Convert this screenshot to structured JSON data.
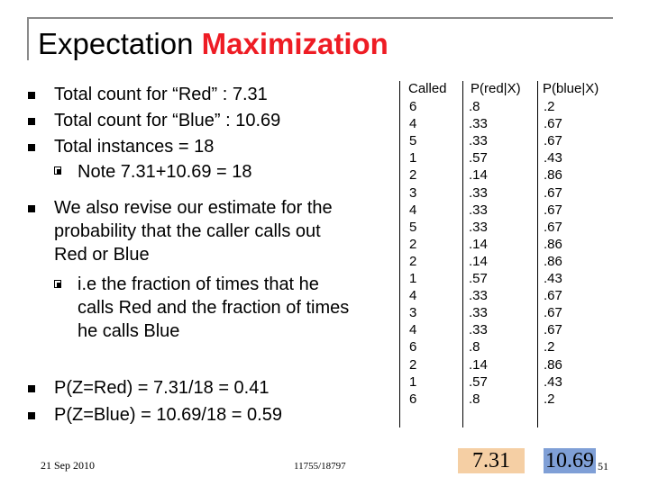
{
  "title": {
    "main": "Expectation",
    "accent": "Maximization"
  },
  "bullets": {
    "b1": "Total count for “Red” : 7.31",
    "b2": "Total count for “Blue” : 10.69",
    "b3": "Total instances = 18",
    "b3_sub": "Note 7.31+10.69 = 18",
    "b4_lines": [
      "We also revise our estimate for the",
      "probability that the caller calls out",
      "Red or Blue"
    ],
    "b4_sub_lines": [
      "i.e the fraction of times that he",
      "calls Red and the fraction of times",
      "he calls Blue"
    ],
    "b5": "P(Z=Red) = 7.31/18 = 0.41",
    "b6": "P(Z=Blue) = 10.69/18 = 0.59"
  },
  "table": {
    "headers": [
      "Called",
      "P(red|X)",
      "P(blue|X)"
    ],
    "rows": [
      [
        "6",
        ".8",
        ".2"
      ],
      [
        "4",
        ".33",
        ".67"
      ],
      [
        "5",
        ".33",
        ".67"
      ],
      [
        "1",
        ".57",
        ".43"
      ],
      [
        "2",
        ".14",
        ".86"
      ],
      [
        "3",
        ".33",
        ".67"
      ],
      [
        "4",
        ".33",
        ".67"
      ],
      [
        "5",
        ".33",
        ".67"
      ],
      [
        "2",
        ".14",
        ".86"
      ],
      [
        "2",
        ".14",
        ".86"
      ],
      [
        "1",
        ".57",
        ".43"
      ],
      [
        "4",
        ".33",
        ".67"
      ],
      [
        "3",
        ".33",
        ".67"
      ],
      [
        "4",
        ".33",
        ".67"
      ],
      [
        "6",
        ".8",
        ".2"
      ],
      [
        "2",
        ".14",
        ".86"
      ],
      [
        "1",
        ".57",
        ".43"
      ],
      [
        "6",
        ".8",
        ".2"
      ]
    ]
  },
  "sums": {
    "red": "7.31",
    "blue": "10.69"
  },
  "footer": {
    "date": "21 Sep 2010",
    "course": "11755/18797",
    "page": "51"
  },
  "colors": {
    "accent": "#ee1c24",
    "red_highlight": "#f5cfa4",
    "blue_highlight": "#7f9fd6"
  }
}
